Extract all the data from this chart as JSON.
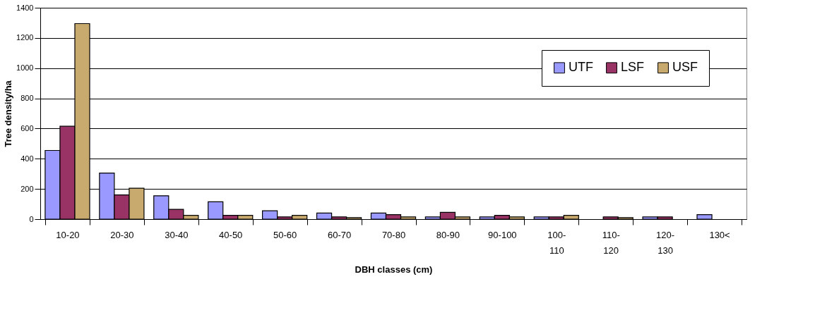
{
  "chart_data": {
    "type": "bar",
    "xlabel": "DBH classes (cm)",
    "ylabel": "Tree density/ha",
    "categories": [
      "10-20",
      "20-30",
      "30-40",
      "40-50",
      "50-60",
      "60-70",
      "70-80",
      "80-90",
      "90-100",
      "100-110",
      "110-120",
      "120-130",
      "130<"
    ],
    "series": [
      {
        "name": "UTF",
        "color": "#9999ff",
        "values": [
          455,
          305,
          155,
          115,
          55,
          40,
          40,
          15,
          15,
          15,
          null,
          15,
          30
        ]
      },
      {
        "name": "LSF",
        "color": "#993366",
        "values": [
          615,
          160,
          65,
          25,
          15,
          15,
          30,
          45,
          25,
          15,
          15,
          15,
          null
        ]
      },
      {
        "name": "USF",
        "color": "#c8a96e",
        "values": [
          1295,
          205,
          25,
          25,
          25,
          10,
          15,
          15,
          15,
          25,
          10,
          null,
          null
        ]
      }
    ],
    "ylim": [
      0,
      1400
    ],
    "yticks": [
      0,
      200,
      400,
      600,
      800,
      1000,
      1200,
      1400
    ],
    "grid": "y",
    "legend": "right"
  }
}
